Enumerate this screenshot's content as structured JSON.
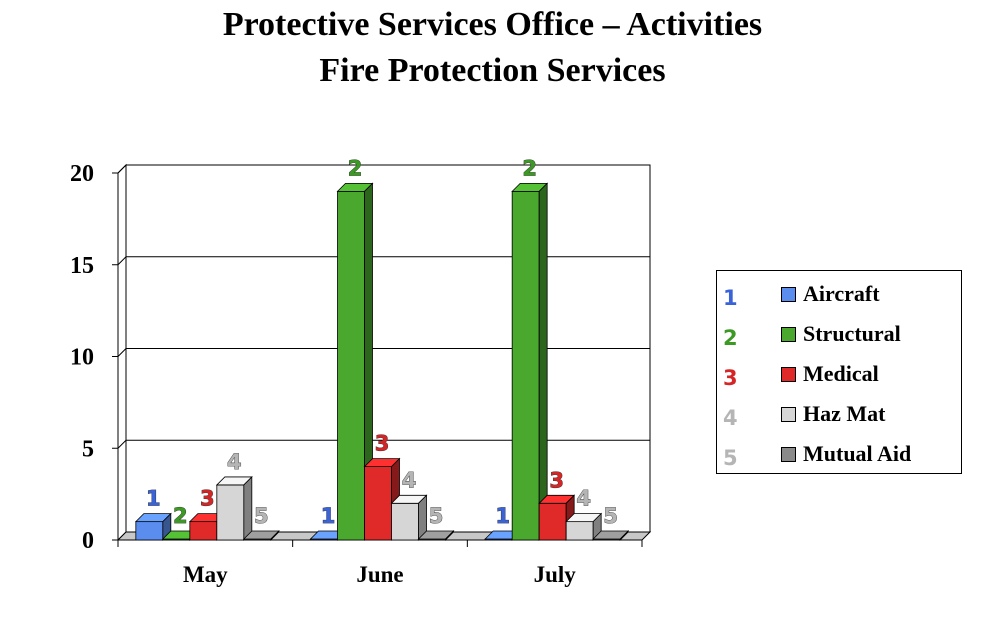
{
  "chart_data": {
    "type": "bar",
    "title": "Protective Services Office – Activities",
    "subtitle": "Fire Protection Services",
    "xlabel": "",
    "ylabel": "",
    "categories": [
      "May",
      "June",
      "July"
    ],
    "ylim": [
      0,
      20
    ],
    "yticks": [
      "0",
      "5",
      "10",
      "15",
      "20"
    ],
    "grid": true,
    "legend_position": "right",
    "series": [
      {
        "name": "Aircraft",
        "label": "1",
        "color": "#5b8def",
        "values": [
          1,
          0,
          0
        ]
      },
      {
        "name": "Structural",
        "label": "2",
        "color": "#4aa82e",
        "values": [
          0,
          19,
          19
        ]
      },
      {
        "name": "Medical",
        "label": "3",
        "color": "#e02a2a",
        "values": [
          1,
          4,
          2
        ]
      },
      {
        "name": "Haz Mat",
        "label": "4",
        "color": "#d6d6d6",
        "values": [
          3,
          2,
          1
        ]
      },
      {
        "name": "Mutual Aid",
        "label": "5",
        "color": "#8a8a8a",
        "values": [
          0,
          0,
          0
        ]
      }
    ],
    "label_colors": [
      "#3a63d8",
      "#3c9a24",
      "#d42626",
      "#b5b5b5",
      "#b5b5b5"
    ]
  }
}
